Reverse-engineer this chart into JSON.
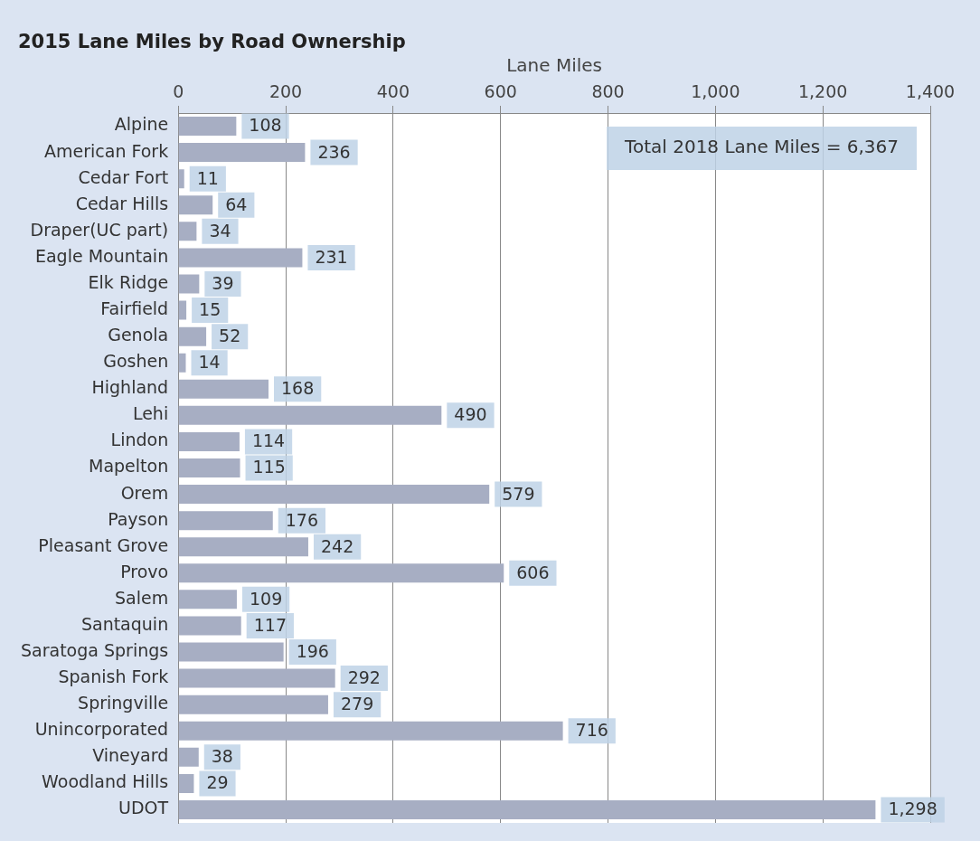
{
  "chart_data": {
    "type": "bar",
    "orientation": "horizontal",
    "title": "2015 Lane Miles by Road Ownership",
    "xlabel": "Lane Miles",
    "categories": [
      "Alpine",
      "American Fork",
      "Cedar Fort",
      "Cedar Hills",
      "Draper(UC part)",
      "Eagle Mountain",
      "Elk Ridge",
      "Fairfield",
      "Genola",
      "Goshen",
      "Highland",
      "Lehi",
      "Lindon",
      "Mapelton",
      "Orem",
      "Payson",
      "Pleasant Grove",
      "Provo",
      "Salem",
      "Santaquin",
      "Saratoga Springs",
      "Spanish Fork",
      "Springville",
      "Unincorporated",
      "Vineyard",
      "Woodland Hills",
      "UDOT"
    ],
    "values": [
      108,
      236,
      11,
      64,
      34,
      231,
      39,
      15,
      52,
      14,
      168,
      490,
      114,
      115,
      579,
      176,
      242,
      606,
      109,
      117,
      196,
      292,
      279,
      716,
      38,
      29,
      1298
    ],
    "value_labels": [
      "108",
      "236",
      "11",
      "64",
      "34",
      "231",
      "39",
      "15",
      "52",
      "14",
      "168",
      "490",
      "114",
      "115",
      "579",
      "176",
      "242",
      "606",
      "109",
      "117",
      "196",
      "292",
      "279",
      "716",
      "38",
      "29",
      "1,298"
    ],
    "color": "#a7aec3",
    "xlim": [
      0,
      1400
    ],
    "xticks": [
      0,
      200,
      400,
      600,
      800,
      {
        "value": 1000,
        "label": "1,000"
      },
      {
        "value": 1200,
        "label": "1,200"
      },
      {
        "value": 1400,
        "label": "1,400"
      }
    ],
    "grid": "x",
    "legend": false,
    "annotations": [
      "Total 2018 Lane Miles = 6,367"
    ]
  }
}
